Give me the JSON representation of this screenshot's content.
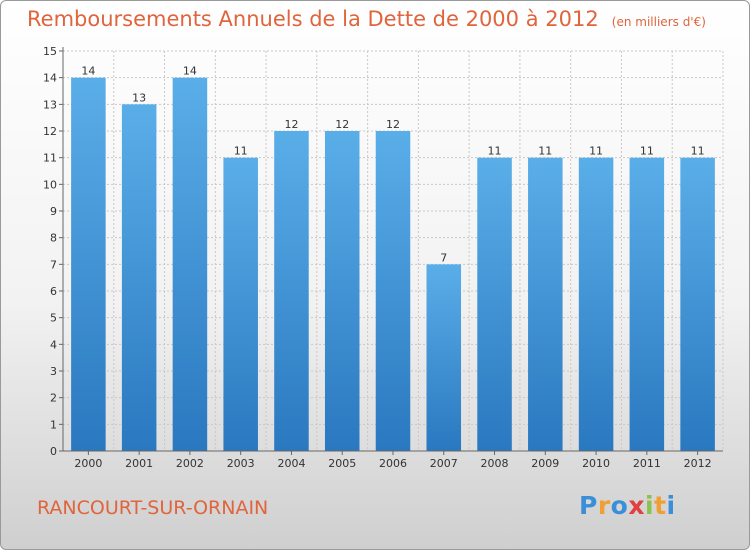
{
  "chart_data": {
    "type": "bar",
    "title": "Remboursements Annuels de la Dette de 2000 à 2012",
    "unit_note": "(en milliers d'€)",
    "categories": [
      "2000",
      "2001",
      "2002",
      "2003",
      "2004",
      "2005",
      "2006",
      "2007",
      "2008",
      "2009",
      "2010",
      "2011",
      "2012"
    ],
    "values": [
      14,
      13,
      14,
      11,
      12,
      12,
      12,
      7,
      11,
      11,
      11,
      11,
      11
    ],
    "ylim": [
      0,
      15
    ],
    "yticks": [
      0,
      1,
      2,
      3,
      4,
      5,
      6,
      7,
      8,
      9,
      10,
      11,
      12,
      13,
      14,
      15
    ],
    "xlabel": "",
    "ylabel": "",
    "grid": true
  },
  "commune": "RANCOURT-SUR-ORNAIN",
  "logo": {
    "letters": [
      {
        "ch": "P",
        "color": "#3a8fd8"
      },
      {
        "ch": "r",
        "color": "#f0a030"
      },
      {
        "ch": "o",
        "color": "#3a8fd8"
      },
      {
        "ch": "x",
        "color": "#e04040"
      },
      {
        "ch": "i",
        "color": "#8bc34a"
      },
      {
        "ch": "t",
        "color": "#f0a030"
      },
      {
        "ch": "i",
        "color": "#3a8fd8"
      }
    ]
  },
  "colors": {
    "accent": "#e0643c",
    "bar_top": "#5aaee8",
    "bar_bottom": "#2a78c0",
    "grid": "#c8c8c8",
    "axis": "#666666"
  }
}
